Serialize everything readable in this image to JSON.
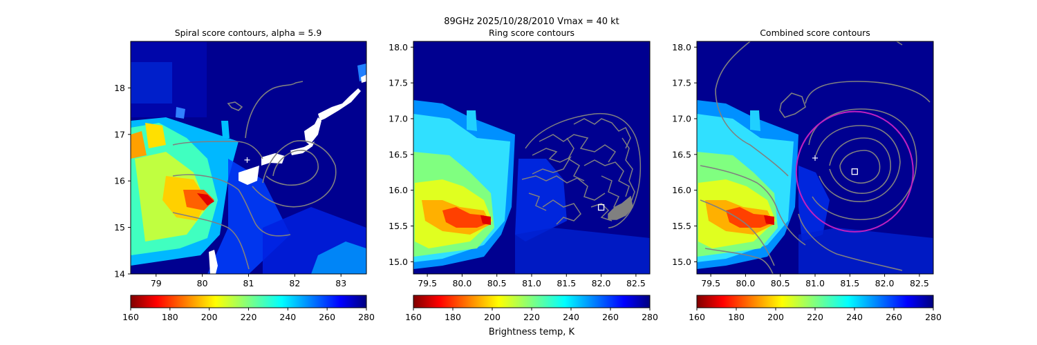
{
  "figure": {
    "suptitle_line1": "89GHz  2025/10/28/2010    Vmax = 40 kt",
    "colorbar_label": "Brightness temp, K"
  },
  "chart_data": [
    {
      "type": "heatmap",
      "title": "Spiral score contours, alpha =  5.9",
      "xlim": [
        78.45,
        83.55
      ],
      "ylim": [
        14.0,
        19.0
      ],
      "xticks": [
        79,
        80,
        81,
        82,
        83
      ],
      "yticks": [
        14,
        15,
        16,
        17,
        18
      ],
      "grid": false,
      "markers": [
        {
          "kind": "plus",
          "color": "#ffffff",
          "x": 80.97,
          "y": 16.45
        }
      ],
      "colorbar": {
        "min": 160,
        "max": 280,
        "ticks": [
          160,
          180,
          200,
          220,
          240,
          260,
          280
        ],
        "cmap": "jet_r"
      }
    },
    {
      "type": "heatmap",
      "title": "Ring score contours",
      "xlim": [
        79.3,
        82.7
      ],
      "ylim": [
        14.83,
        18.08
      ],
      "xticks": [
        79.5,
        80.0,
        80.5,
        81.0,
        81.5,
        82.0,
        82.5
      ],
      "yticks": [
        15.0,
        15.5,
        16.0,
        16.5,
        17.0,
        17.5,
        18.0
      ],
      "tick_decimals": 1,
      "grid": false,
      "markers": [
        {
          "kind": "square",
          "color": "#ffffff",
          "x": 82.0,
          "y": 15.76
        }
      ],
      "colorbar": {
        "min": 160,
        "max": 280,
        "ticks": [
          160,
          180,
          200,
          220,
          240,
          260,
          280
        ],
        "cmap": "jet_r"
      }
    },
    {
      "type": "heatmap",
      "title": "Combined score contours",
      "xlim": [
        79.3,
        82.7
      ],
      "ylim": [
        14.83,
        18.08
      ],
      "xticks": [
        79.5,
        80.0,
        80.5,
        81.0,
        81.5,
        82.0,
        82.5
      ],
      "yticks": [
        15.0,
        15.5,
        16.0,
        16.5,
        17.0,
        17.5,
        18.0
      ],
      "tick_decimals": 1,
      "grid": false,
      "markers": [
        {
          "kind": "plus",
          "color": "#ffffff",
          "x": 81.0,
          "y": 16.45
        },
        {
          "kind": "square",
          "color": "#ffffff",
          "x": 81.57,
          "y": 16.26
        },
        {
          "kind": "circle",
          "color": "#c020c0",
          "x": 81.57,
          "y": 16.26,
          "radius": 0.84
        }
      ],
      "colorbar": {
        "min": 160,
        "max": 280,
        "ticks": [
          160,
          180,
          200,
          220,
          240,
          260,
          280
        ],
        "cmap": "jet_r"
      }
    }
  ]
}
